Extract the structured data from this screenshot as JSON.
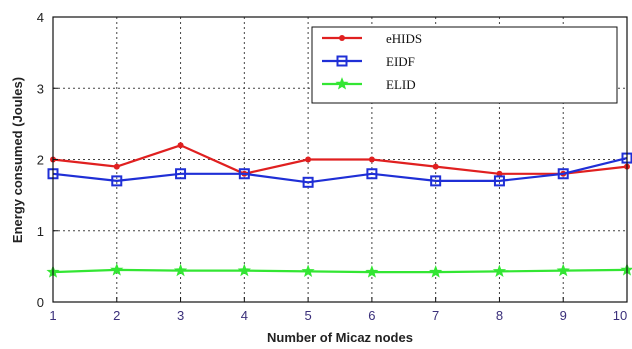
{
  "chart_data": {
    "type": "line",
    "title": "",
    "xlabel": "Number of Micaz nodes",
    "ylabel": "Energy consumed (Joules)",
    "x": [
      1,
      2,
      3,
      4,
      5,
      6,
      7,
      8,
      9,
      10
    ],
    "xlim": [
      1,
      10
    ],
    "ylim": [
      0,
      4
    ],
    "xticks": [
      "1",
      "2",
      "3",
      "4",
      "5",
      "6",
      "7",
      "8",
      "9",
      "10"
    ],
    "yticks": [
      "0",
      "1",
      "2",
      "3",
      "4"
    ],
    "grid": true,
    "legend_position": "top-right",
    "series": [
      {
        "name": "eHIDS",
        "color": "#e02020",
        "marker": "dot",
        "values": [
          2.0,
          1.9,
          2.2,
          1.8,
          2.0,
          2.0,
          1.9,
          1.8,
          1.8,
          1.9
        ]
      },
      {
        "name": "EIDF",
        "color": "#1f2fd6",
        "marker": "square",
        "values": [
          1.8,
          1.7,
          1.8,
          1.8,
          1.68,
          1.8,
          1.7,
          1.7,
          1.8,
          2.02
        ]
      },
      {
        "name": "ELID",
        "color": "#33e633",
        "marker": "star",
        "values": [
          0.42,
          0.45,
          0.44,
          0.44,
          0.43,
          0.42,
          0.42,
          0.43,
          0.44,
          0.45
        ]
      }
    ]
  }
}
